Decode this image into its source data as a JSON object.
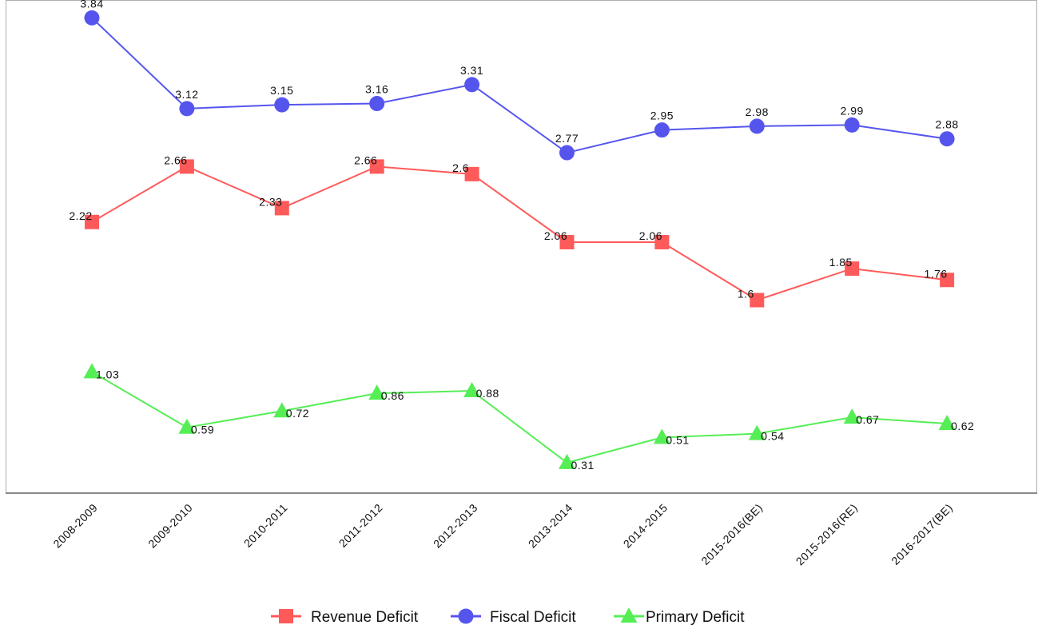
{
  "chart_data": {
    "type": "line",
    "title": "",
    "xlabel": "",
    "ylabel": "",
    "categories": [
      "2008-2009",
      "2009-2010",
      "2010-2011",
      "2011-2012",
      "2012-2013",
      "2013-2014",
      "2014-2015",
      "2015-2016(BE)",
      "2015-2016(RE)",
      "2016-2017(BE)"
    ],
    "ylim": [
      0.1,
      3.95
    ],
    "grid": false,
    "legend_position": "bottom-center",
    "series": [
      {
        "name": "Revenue Deficit",
        "marker": "square",
        "color": "#ff5a5a",
        "values": [
          2.22,
          2.66,
          2.33,
          2.66,
          2.6,
          2.06,
          2.06,
          1.6,
          1.85,
          1.76
        ],
        "labels": [
          "2.22",
          "2.66",
          "2.33",
          "2.66",
          "2.6",
          "2.06",
          "2.06",
          "1.6",
          "1.85",
          "1.76"
        ]
      },
      {
        "name": "Fiscal Deficit",
        "marker": "circle",
        "color": "#5555ee",
        "values": [
          3.84,
          3.12,
          3.15,
          3.16,
          3.31,
          2.77,
          2.95,
          2.98,
          2.99,
          2.88
        ],
        "labels": [
          "3.84",
          "3.12",
          "3.15",
          "3.16",
          "3.31",
          "2.77",
          "2.95",
          "2.98",
          "2.99",
          "2.88"
        ]
      },
      {
        "name": "Primary Deficit",
        "marker": "triangle",
        "color": "#55ee55",
        "values": [
          1.03,
          0.59,
          0.72,
          0.86,
          0.88,
          0.31,
          0.51,
          0.54,
          0.67,
          0.62
        ],
        "labels": [
          "1.03",
          "0.59",
          "0.72",
          "0.86",
          "0.88",
          "0.31",
          "0.51",
          "0.54",
          "0.67",
          "0.62"
        ]
      }
    ]
  }
}
